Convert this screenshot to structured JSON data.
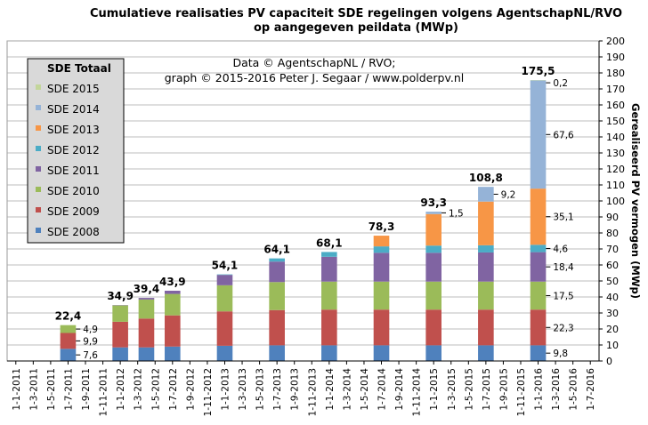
{
  "chart_data": {
    "type": "bar",
    "stacked": true,
    "title_line1": "Cumulatieve realisaties PV capaciteit SDE regelingen volgens AgentschapNL/RVO",
    "title_line2": "op aangegeven peildata (MWp)",
    "credit_line1": "Data © AgentschapNL / RVO;",
    "credit_line2": "graph © 2015-2016  Peter J. Segaar / www.polderpv.nl",
    "ylabel": "Gerealiseerd PV vermogen (MWp)",
    "ylim": [
      0,
      200
    ],
    "ytick_step": 10,
    "yaxis_side": "right",
    "grid": "horizontal",
    "legend_title": "SDE Totaal",
    "legend_placement": "top-left",
    "x_ticks": [
      "1-1-2011",
      "1-3-2011",
      "1-5-2011",
      "1-7-2011",
      "1-9-2011",
      "1-11-2011",
      "1-1-2012",
      "1-3-2012",
      "1-5-2012",
      "1-7-2012",
      "1-9-2012",
      "1-11-2012",
      "1-1-2013",
      "1-3-2013",
      "1-5-2013",
      "1-7-2013",
      "1-9-2013",
      "1-11-2013",
      "1-1-2014",
      "1-3-2014",
      "1-5-2014",
      "1-7-2014",
      "1-9-2014",
      "1-11-2014",
      "1-1-2015",
      "1-3-2015",
      "1-5-2015",
      "1-7-2015",
      "1-9-2015",
      "1-11-2015",
      "1-1-2016",
      "1-3-2016",
      "1-5-2016",
      "1-7-2016"
    ],
    "bar_dates": [
      "1-7-2011",
      "1-1-2012",
      "1-4-2012",
      "1-7-2012",
      "1-1-2013",
      "1-7-2013",
      "1-1-2014",
      "1-7-2014",
      "1-1-2015",
      "1-7-2015",
      "1-1-2016"
    ],
    "series": [
      {
        "name": "SDE 2008",
        "color": "#4f81bd",
        "values": [
          7.6,
          8.5,
          8.5,
          9,
          9.5,
          9.8,
          9.8,
          9.8,
          9.8,
          9.8,
          9.8
        ]
      },
      {
        "name": "SDE 2009",
        "color": "#c0504d",
        "values": [
          9.9,
          16,
          18,
          19.5,
          21.5,
          22,
          22.3,
          22.3,
          22.3,
          22.3,
          22.3
        ]
      },
      {
        "name": "SDE 2010",
        "color": "#9bbb59",
        "values": [
          4.9,
          10.2,
          11.9,
          13.4,
          16.3,
          17.5,
          17.5,
          17.5,
          17.5,
          17.5,
          17.5
        ]
      },
      {
        "name": "SDE 2011",
        "color": "#8064a2",
        "values": [
          0,
          0.2,
          1,
          2,
          6.5,
          12.8,
          15.5,
          18,
          18,
          18.2,
          18.4
        ]
      },
      {
        "name": "SDE 2012",
        "color": "#4bacc6",
        "values": [
          0,
          0,
          0,
          0,
          0.3,
          2,
          3,
          4,
          4.5,
          4.5,
          4.6
        ]
      },
      {
        "name": "SDE 2013",
        "color": "#f79646",
        "values": [
          0,
          0,
          0,
          0,
          0,
          0,
          0,
          6.7,
          19.7,
          27.3,
          35.1
        ]
      },
      {
        "name": "SDE 2014",
        "color": "#95b3d7",
        "values": [
          0,
          0,
          0,
          0,
          0,
          0,
          0,
          0,
          1.5,
          9.2,
          67.6
        ]
      },
      {
        "name": "SDE 2015",
        "color": "#c3d69b",
        "values": [
          0,
          0,
          0,
          0,
          0,
          0,
          0,
          0,
          0,
          0,
          0.2
        ]
      }
    ],
    "totals": [
      "22,4",
      "34,9",
      "39,4",
      "43,9",
      "54,1",
      "64,1",
      "68,1",
      "78,3",
      "93,3",
      "108,8",
      "175,5"
    ],
    "annotations": [
      {
        "bar": 0,
        "series": 2,
        "text": "4,9"
      },
      {
        "bar": 0,
        "series": 1,
        "text": "9,9"
      },
      {
        "bar": 0,
        "series": 0,
        "text": "7,6"
      },
      {
        "bar": 8,
        "series": 6,
        "text": "1,5"
      },
      {
        "bar": 9,
        "series": 6,
        "text": "9,2"
      },
      {
        "bar": 10,
        "series": 7,
        "text": "0,2"
      },
      {
        "bar": 10,
        "series": 6,
        "text": "67,6"
      },
      {
        "bar": 10,
        "series": 5,
        "text": "35,1"
      },
      {
        "bar": 10,
        "series": 4,
        "text": "4,6"
      },
      {
        "bar": 10,
        "series": 3,
        "text": "18,4"
      },
      {
        "bar": 10,
        "series": 2,
        "text": "17,5"
      },
      {
        "bar": 10,
        "series": 1,
        "text": "22,3"
      },
      {
        "bar": 10,
        "series": 0,
        "text": "9,8"
      }
    ]
  }
}
